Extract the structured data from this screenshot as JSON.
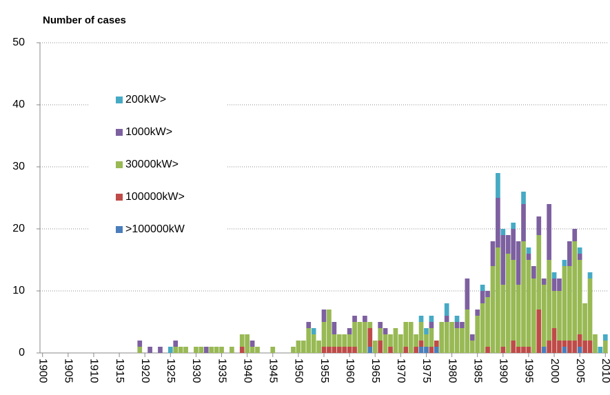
{
  "chart_data": {
    "type": "stacked-bar",
    "title": "Number of cases",
    "x": [
      1919,
      1920,
      1921,
      1922,
      1923,
      1924,
      1925,
      1926,
      1927,
      1928,
      1929,
      1930,
      1931,
      1932,
      1933,
      1934,
      1935,
      1936,
      1937,
      1938,
      1939,
      1940,
      1941,
      1942,
      1943,
      1944,
      1945,
      1946,
      1947,
      1948,
      1949,
      1950,
      1951,
      1952,
      1953,
      1954,
      1955,
      1956,
      1957,
      1958,
      1959,
      1960,
      1961,
      1962,
      1963,
      1964,
      1965,
      1966,
      1967,
      1968,
      1969,
      1970,
      1971,
      1972,
      1973,
      1974,
      1975,
      1976,
      1977,
      1978,
      1979,
      1980,
      1981,
      1982,
      1983,
      1984,
      1985,
      1986,
      1987,
      1988,
      1989,
      1990,
      1991,
      1992,
      1993,
      1994,
      1995,
      1996,
      1997,
      1998,
      1999,
      2000,
      2001,
      2002,
      2003,
      2004,
      2005,
      2006,
      2007,
      2008,
      2009,
      2010
    ],
    "series": [
      {
        "name": ">100000kW",
        "color": "#4a7ebb",
        "values": [
          0,
          0,
          0,
          0,
          0,
          0,
          0,
          0,
          0,
          0,
          0,
          0,
          0,
          0,
          0,
          0,
          0,
          0,
          0,
          0,
          0,
          0,
          0,
          0,
          0,
          0,
          0,
          0,
          0,
          0,
          0,
          0,
          0,
          0,
          0,
          0,
          0,
          0,
          0,
          0,
          0,
          0,
          0,
          0,
          0,
          1,
          0,
          0,
          0,
          0,
          0,
          0,
          0,
          0,
          0,
          1,
          1,
          0,
          1,
          0,
          0,
          0,
          0,
          0,
          0,
          0,
          0,
          0,
          0,
          0,
          0,
          0,
          0,
          0,
          0,
          0,
          0,
          0,
          0,
          1,
          0,
          0,
          0,
          1,
          0,
          0,
          1,
          0,
          0,
          0,
          0,
          0
        ]
      },
      {
        "name": "100000kW>",
        "color": "#be4b48",
        "values": [
          0,
          0,
          0,
          0,
          0,
          0,
          0,
          0,
          0,
          0,
          0,
          0,
          0,
          0,
          0,
          0,
          0,
          0,
          0,
          0,
          1,
          0,
          0,
          0,
          0,
          0,
          0,
          0,
          0,
          0,
          0,
          0,
          0,
          0,
          0,
          0,
          1,
          1,
          1,
          1,
          1,
          1,
          1,
          0,
          0,
          3,
          0,
          2,
          0,
          1,
          0,
          0,
          1,
          0,
          1,
          1,
          0,
          1,
          1,
          0,
          0,
          0,
          0,
          0,
          0,
          0,
          0,
          0,
          1,
          0,
          0,
          1,
          0,
          2,
          1,
          1,
          1,
          0,
          7,
          0,
          2,
          4,
          2,
          1,
          2,
          2,
          2,
          2,
          2,
          0,
          0,
          0
        ]
      },
      {
        "name": "30000kW>",
        "color": "#98b954",
        "values": [
          1,
          0,
          0,
          0,
          0,
          0,
          0,
          1,
          1,
          1,
          0,
          1,
          1,
          0,
          1,
          1,
          1,
          0,
          1,
          0,
          2,
          3,
          1,
          1,
          0,
          0,
          1,
          0,
          0,
          0,
          1,
          2,
          2,
          4,
          3,
          2,
          4,
          6,
          2,
          2,
          2,
          2,
          4,
          5,
          5,
          1,
          2,
          2,
          3,
          2,
          4,
          3,
          4,
          5,
          2,
          3,
          2,
          3,
          0,
          5,
          5,
          5,
          4,
          4,
          7,
          2,
          6,
          8,
          8,
          14,
          17,
          10,
          16,
          13,
          10,
          17,
          14,
          12,
          12,
          10,
          13,
          6,
          8,
          12,
          12,
          16,
          12,
          6,
          10,
          3,
          0,
          2
        ]
      },
      {
        "name": "1000kW>",
        "color": "#7d60a0",
        "values": [
          1,
          0,
          1,
          0,
          1,
          0,
          0,
          1,
          0,
          0,
          0,
          0,
          0,
          1,
          0,
          0,
          0,
          0,
          0,
          0,
          0,
          0,
          1,
          0,
          0,
          0,
          0,
          0,
          0,
          0,
          0,
          0,
          0,
          1,
          0,
          0,
          2,
          0,
          2,
          0,
          0,
          1,
          1,
          0,
          1,
          0,
          0,
          1,
          1,
          0,
          0,
          0,
          0,
          0,
          0,
          0,
          0,
          1,
          0,
          0,
          1,
          0,
          1,
          1,
          5,
          1,
          1,
          2,
          1,
          4,
          8,
          8,
          3,
          5,
          7,
          6,
          1,
          2,
          3,
          1,
          9,
          2,
          2,
          0,
          4,
          2,
          1,
          0,
          0,
          0,
          0,
          0
        ]
      },
      {
        "name": "200kW>",
        "color": "#46aac5",
        "values": [
          0,
          0,
          0,
          0,
          0,
          0,
          1,
          0,
          0,
          0,
          0,
          0,
          0,
          0,
          0,
          0,
          0,
          0,
          0,
          0,
          0,
          0,
          0,
          0,
          0,
          0,
          0,
          0,
          0,
          0,
          0,
          0,
          0,
          0,
          1,
          0,
          0,
          0,
          0,
          0,
          0,
          0,
          0,
          0,
          0,
          0,
          0,
          0,
          0,
          0,
          0,
          0,
          0,
          0,
          0,
          1,
          1,
          1,
          0,
          0,
          2,
          0,
          1,
          0,
          0,
          0,
          0,
          1,
          0,
          0,
          4,
          1,
          0,
          1,
          0,
          2,
          1,
          0,
          0,
          0,
          0,
          1,
          0,
          1,
          0,
          0,
          1,
          0,
          1,
          0,
          1,
          1
        ]
      }
    ],
    "xlim": [
      1899.5,
      2010.5
    ],
    "xticks": [
      1900,
      1905,
      1910,
      1915,
      1920,
      1925,
      1930,
      1935,
      1940,
      1945,
      1950,
      1955,
      1960,
      1965,
      1970,
      1975,
      1980,
      1985,
      1990,
      1995,
      2000,
      2005,
      2010
    ],
    "ylim": [
      0,
      50
    ],
    "yticks": [
      0,
      10,
      20,
      30,
      40,
      50
    ],
    "grid": true,
    "legend": "left"
  }
}
